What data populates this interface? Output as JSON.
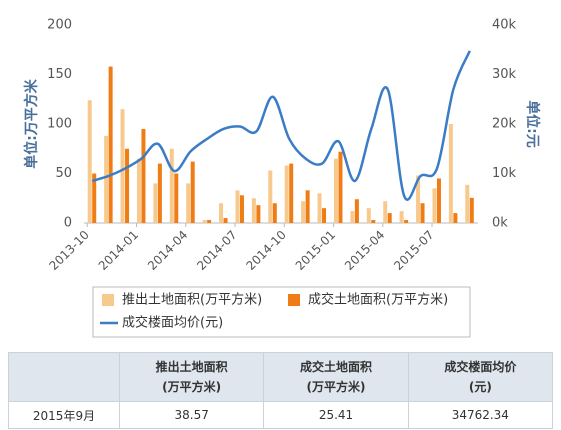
{
  "chart_data": {
    "type": "bar",
    "categories": [
      "2013-10",
      null,
      null,
      "2014-01",
      null,
      null,
      "2014-04",
      null,
      null,
      "2014-07",
      null,
      null,
      "2014-10",
      null,
      null,
      "2015-01",
      null,
      null,
      "2015-04",
      null,
      null,
      "2015-07",
      null,
      null
    ],
    "series": [
      {
        "name": "推出土地面积(万平方米)",
        "type": "bar",
        "color": "#f8c98c",
        "values": [
          124,
          88,
          115,
          65,
          40,
          75,
          40,
          3,
          20,
          33,
          25,
          53,
          58,
          22,
          30,
          65,
          12,
          15,
          22,
          12,
          48,
          35,
          100,
          38.57
        ]
      },
      {
        "name": "成交土地面积(万平方米)",
        "type": "bar",
        "color": "#f07c16",
        "values": [
          50,
          158,
          75,
          95,
          60,
          50,
          62,
          3,
          5,
          28,
          18,
          20,
          60,
          33,
          15,
          72,
          24,
          3,
          10,
          3,
          20,
          45,
          10,
          25.41
        ]
      },
      {
        "name": "成交楼面均价(元)",
        "type": "line",
        "axis": "y2",
        "color": "#3a7cc6",
        "values": [
          8500,
          9500,
          11000,
          13000,
          16000,
          10500,
          14500,
          17000,
          19000,
          19500,
          18500,
          25500,
          17000,
          13000,
          12000,
          16500,
          8500,
          19000,
          27000,
          5500,
          9500,
          11000,
          27000,
          34762.34
        ]
      }
    ],
    "ylabel": "单位:万平方米",
    "y2label": "单位:元",
    "ylim": [
      0,
      200
    ],
    "yticks": [
      0,
      50,
      100,
      150,
      200
    ],
    "y2lim": [
      0,
      40000
    ],
    "y2ticks": [
      {
        "value": 0,
        "label": "0k"
      },
      {
        "value": 10000,
        "label": "10k"
      },
      {
        "value": 20000,
        "label": "20k"
      },
      {
        "value": 30000,
        "label": "30k"
      },
      {
        "value": 40000,
        "label": "40k"
      }
    ],
    "grid": false,
    "legend": "bottom"
  },
  "table": {
    "header": [
      [],
      [
        "推出土地面积",
        "(万平方米)"
      ],
      [
        "成交土地面积",
        "(万平方米)"
      ],
      [
        "成交楼面均价",
        "(元)"
      ]
    ],
    "rows": [
      [
        "2015年9月",
        "38.57",
        "25.41",
        "34762.34"
      ]
    ]
  }
}
